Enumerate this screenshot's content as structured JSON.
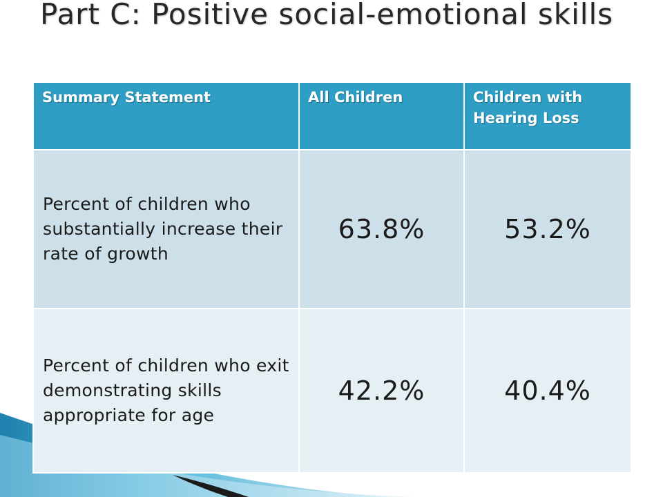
{
  "slide": {
    "title": "Part C:  Positive social-emotional skills"
  },
  "table": {
    "headers": [
      "Summary Statement",
      "All Children",
      "Children with Hearing Loss"
    ],
    "rows": [
      {
        "statement": "Percent of children who substantially increase their rate of growth",
        "all_children": "63.8%",
        "hearing_loss": "53.2%"
      },
      {
        "statement": "Percent of children who exit demonstrating skills appropriate for age",
        "all_children": "42.2%",
        "hearing_loss": "40.4%"
      }
    ]
  },
  "colors": {
    "header_bg": "#2f9ec4",
    "row1_bg": "#cde0ea",
    "row2_bg": "#e6eff4",
    "swoosh_blue": "#2b8fb8",
    "swoosh_dark": "#1b1b1b"
  }
}
